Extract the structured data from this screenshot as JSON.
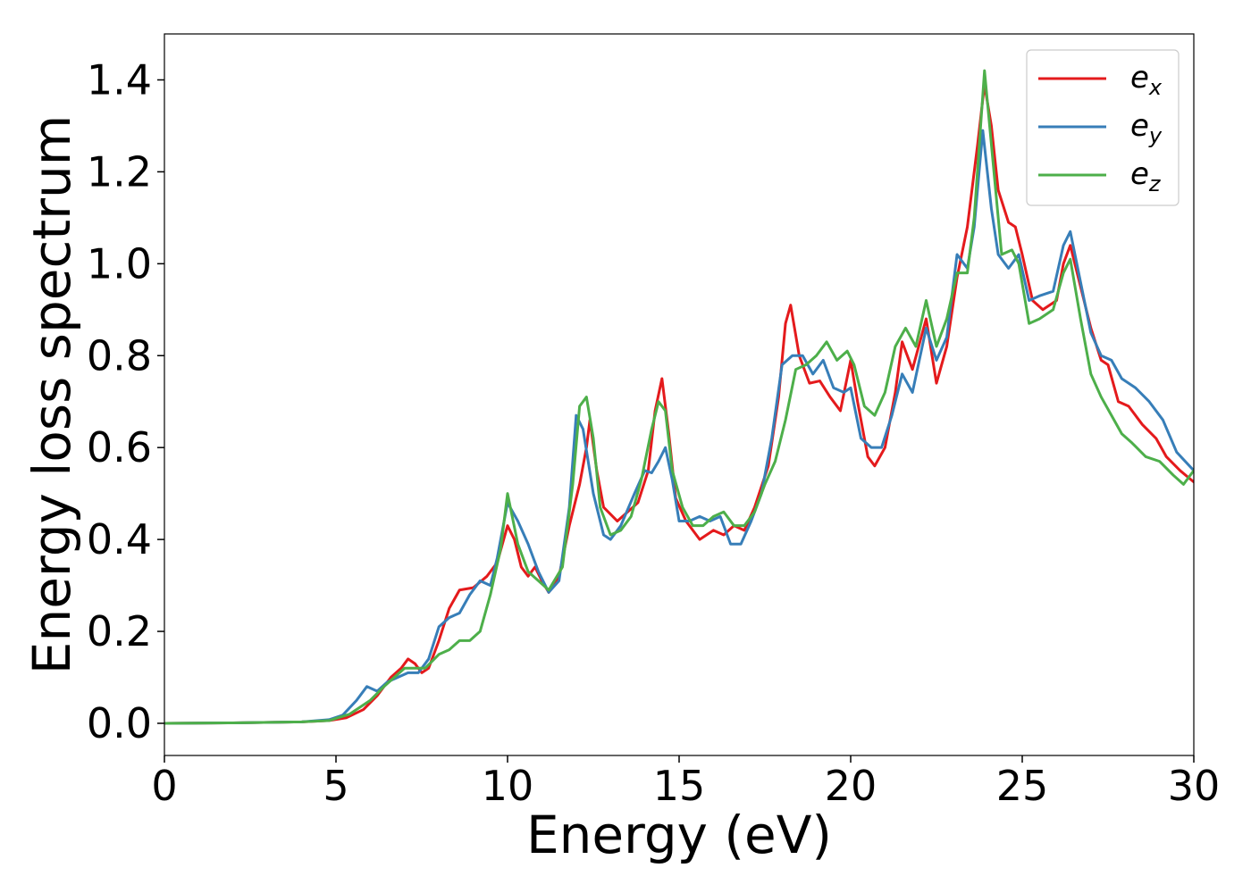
{
  "chart_data": {
    "type": "line",
    "xlabel": "Energy (eV)",
    "ylabel": "Energy loss spectrum",
    "xlim": [
      0,
      30
    ],
    "ylim": [
      -0.07,
      1.5
    ],
    "xticks": [
      0,
      5,
      10,
      15,
      20,
      25,
      30
    ],
    "yticks": [
      0.0,
      0.2,
      0.4,
      0.6,
      0.8,
      1.0,
      1.2,
      1.4
    ],
    "xtick_labels": [
      "0",
      "5",
      "10",
      "15",
      "20",
      "25",
      "30"
    ],
    "ytick_labels": [
      "0.0",
      "0.2",
      "0.4",
      "0.6",
      "0.8",
      "1.0",
      "1.2",
      "1.4"
    ],
    "grid": false,
    "legend_position": "top-right",
    "series": [
      {
        "name": "e_x",
        "label_base": "e",
        "label_sub": "x",
        "color": "#e41a1c",
        "points": [
          [
            0,
            0.0
          ],
          [
            2,
            0.001
          ],
          [
            4,
            0.003
          ],
          [
            4.8,
            0.006
          ],
          [
            5.3,
            0.012
          ],
          [
            5.8,
            0.03
          ],
          [
            6.2,
            0.06
          ],
          [
            6.6,
            0.1
          ],
          [
            6.9,
            0.12
          ],
          [
            7.1,
            0.14
          ],
          [
            7.3,
            0.13
          ],
          [
            7.5,
            0.11
          ],
          [
            7.7,
            0.12
          ],
          [
            8.0,
            0.18
          ],
          [
            8.3,
            0.25
          ],
          [
            8.6,
            0.29
          ],
          [
            9.0,
            0.295
          ],
          [
            9.4,
            0.32
          ],
          [
            9.7,
            0.35
          ],
          [
            10.0,
            0.43
          ],
          [
            10.2,
            0.4
          ],
          [
            10.4,
            0.34
          ],
          [
            10.6,
            0.32
          ],
          [
            10.8,
            0.34
          ],
          [
            11.0,
            0.31
          ],
          [
            11.2,
            0.285
          ],
          [
            11.5,
            0.32
          ],
          [
            11.8,
            0.43
          ],
          [
            12.1,
            0.52
          ],
          [
            12.3,
            0.6
          ],
          [
            12.4,
            0.66
          ],
          [
            12.6,
            0.55
          ],
          [
            12.8,
            0.47
          ],
          [
            13.2,
            0.44
          ],
          [
            13.5,
            0.46
          ],
          [
            13.8,
            0.48
          ],
          [
            14.1,
            0.55
          ],
          [
            14.3,
            0.68
          ],
          [
            14.5,
            0.75
          ],
          [
            14.7,
            0.63
          ],
          [
            14.9,
            0.49
          ],
          [
            15.2,
            0.44
          ],
          [
            15.6,
            0.4
          ],
          [
            16.0,
            0.42
          ],
          [
            16.3,
            0.41
          ],
          [
            16.6,
            0.43
          ],
          [
            16.9,
            0.42
          ],
          [
            17.2,
            0.47
          ],
          [
            17.6,
            0.56
          ],
          [
            17.9,
            0.71
          ],
          [
            18.1,
            0.87
          ],
          [
            18.25,
            0.91
          ],
          [
            18.5,
            0.8
          ],
          [
            18.8,
            0.74
          ],
          [
            19.1,
            0.745
          ],
          [
            19.4,
            0.71
          ],
          [
            19.7,
            0.68
          ],
          [
            20.0,
            0.79
          ],
          [
            20.2,
            0.7
          ],
          [
            20.5,
            0.58
          ],
          [
            20.7,
            0.56
          ],
          [
            21.0,
            0.6
          ],
          [
            21.3,
            0.72
          ],
          [
            21.5,
            0.83
          ],
          [
            21.8,
            0.77
          ],
          [
            22.2,
            0.88
          ],
          [
            22.5,
            0.74
          ],
          [
            22.8,
            0.82
          ],
          [
            23.1,
            0.97
          ],
          [
            23.4,
            1.08
          ],
          [
            23.7,
            1.26
          ],
          [
            23.9,
            1.39
          ],
          [
            24.1,
            1.3
          ],
          [
            24.3,
            1.16
          ],
          [
            24.6,
            1.09
          ],
          [
            24.8,
            1.08
          ],
          [
            25.0,
            1.02
          ],
          [
            25.3,
            0.92
          ],
          [
            25.6,
            0.9
          ],
          [
            26.0,
            0.92
          ],
          [
            26.2,
            1.0
          ],
          [
            26.4,
            1.04
          ],
          [
            26.6,
            0.98
          ],
          [
            27.0,
            0.86
          ],
          [
            27.3,
            0.79
          ],
          [
            27.5,
            0.78
          ],
          [
            27.8,
            0.7
          ],
          [
            28.1,
            0.69
          ],
          [
            28.5,
            0.65
          ],
          [
            28.9,
            0.62
          ],
          [
            29.2,
            0.58
          ],
          [
            29.6,
            0.55
          ],
          [
            30.0,
            0.525
          ]
        ]
      },
      {
        "name": "e_y",
        "label_base": "e",
        "label_sub": "y",
        "color": "#377eb8",
        "points": [
          [
            0,
            0.0
          ],
          [
            2,
            0.001
          ],
          [
            4,
            0.003
          ],
          [
            4.8,
            0.008
          ],
          [
            5.2,
            0.018
          ],
          [
            5.6,
            0.05
          ],
          [
            5.9,
            0.08
          ],
          [
            6.2,
            0.07
          ],
          [
            6.5,
            0.09
          ],
          [
            6.8,
            0.1
          ],
          [
            7.1,
            0.11
          ],
          [
            7.4,
            0.11
          ],
          [
            7.7,
            0.14
          ],
          [
            8.0,
            0.21
          ],
          [
            8.3,
            0.23
          ],
          [
            8.6,
            0.24
          ],
          [
            8.9,
            0.28
          ],
          [
            9.2,
            0.31
          ],
          [
            9.5,
            0.3
          ],
          [
            9.7,
            0.36
          ],
          [
            10.0,
            0.48
          ],
          [
            10.3,
            0.44
          ],
          [
            10.6,
            0.39
          ],
          [
            10.9,
            0.33
          ],
          [
            11.2,
            0.285
          ],
          [
            11.5,
            0.31
          ],
          [
            11.8,
            0.47
          ],
          [
            12.0,
            0.67
          ],
          [
            12.2,
            0.64
          ],
          [
            12.5,
            0.5
          ],
          [
            12.8,
            0.41
          ],
          [
            13.0,
            0.4
          ],
          [
            13.3,
            0.43
          ],
          [
            13.7,
            0.5
          ],
          [
            14.0,
            0.55
          ],
          [
            14.2,
            0.545
          ],
          [
            14.4,
            0.57
          ],
          [
            14.6,
            0.6
          ],
          [
            14.8,
            0.53
          ],
          [
            15.0,
            0.44
          ],
          [
            15.3,
            0.44
          ],
          [
            15.6,
            0.45
          ],
          [
            15.9,
            0.44
          ],
          [
            16.2,
            0.45
          ],
          [
            16.5,
            0.39
          ],
          [
            16.8,
            0.39
          ],
          [
            17.1,
            0.44
          ],
          [
            17.4,
            0.5
          ],
          [
            17.7,
            0.62
          ],
          [
            18.0,
            0.78
          ],
          [
            18.3,
            0.8
          ],
          [
            18.6,
            0.8
          ],
          [
            18.9,
            0.76
          ],
          [
            19.2,
            0.79
          ],
          [
            19.5,
            0.73
          ],
          [
            19.8,
            0.72
          ],
          [
            20.0,
            0.73
          ],
          [
            20.3,
            0.62
          ],
          [
            20.6,
            0.6
          ],
          [
            20.9,
            0.6
          ],
          [
            21.2,
            0.67
          ],
          [
            21.5,
            0.76
          ],
          [
            21.8,
            0.72
          ],
          [
            22.2,
            0.86
          ],
          [
            22.5,
            0.79
          ],
          [
            22.8,
            0.84
          ],
          [
            23.1,
            1.02
          ],
          [
            23.4,
            0.99
          ],
          [
            23.6,
            1.08
          ],
          [
            23.85,
            1.29
          ],
          [
            24.1,
            1.12
          ],
          [
            24.3,
            1.02
          ],
          [
            24.6,
            0.99
          ],
          [
            24.9,
            1.02
          ],
          [
            25.2,
            0.92
          ],
          [
            25.5,
            0.93
          ],
          [
            25.9,
            0.94
          ],
          [
            26.2,
            1.04
          ],
          [
            26.4,
            1.07
          ],
          [
            26.7,
            0.96
          ],
          [
            27.0,
            0.85
          ],
          [
            27.3,
            0.8
          ],
          [
            27.6,
            0.79
          ],
          [
            27.9,
            0.75
          ],
          [
            28.3,
            0.73
          ],
          [
            28.7,
            0.7
          ],
          [
            29.1,
            0.66
          ],
          [
            29.5,
            0.59
          ],
          [
            30.0,
            0.55
          ]
        ]
      },
      {
        "name": "e_z",
        "label_base": "e",
        "label_sub": "z",
        "color": "#4daf4a",
        "points": [
          [
            0,
            0.0
          ],
          [
            2,
            0.001
          ],
          [
            4,
            0.003
          ],
          [
            4.8,
            0.006
          ],
          [
            5.4,
            0.02
          ],
          [
            6.0,
            0.05
          ],
          [
            6.4,
            0.08
          ],
          [
            6.7,
            0.1
          ],
          [
            7.0,
            0.12
          ],
          [
            7.3,
            0.12
          ],
          [
            7.6,
            0.12
          ],
          [
            8.0,
            0.15
          ],
          [
            8.3,
            0.16
          ],
          [
            8.6,
            0.18
          ],
          [
            8.9,
            0.18
          ],
          [
            9.2,
            0.2
          ],
          [
            9.5,
            0.28
          ],
          [
            9.8,
            0.38
          ],
          [
            10.0,
            0.5
          ],
          [
            10.3,
            0.39
          ],
          [
            10.6,
            0.33
          ],
          [
            10.9,
            0.31
          ],
          [
            11.2,
            0.29
          ],
          [
            11.6,
            0.34
          ],
          [
            11.9,
            0.52
          ],
          [
            12.1,
            0.69
          ],
          [
            12.3,
            0.71
          ],
          [
            12.5,
            0.62
          ],
          [
            12.7,
            0.47
          ],
          [
            13.0,
            0.41
          ],
          [
            13.3,
            0.42
          ],
          [
            13.6,
            0.45
          ],
          [
            13.9,
            0.53
          ],
          [
            14.2,
            0.64
          ],
          [
            14.4,
            0.7
          ],
          [
            14.6,
            0.68
          ],
          [
            14.8,
            0.55
          ],
          [
            15.1,
            0.47
          ],
          [
            15.4,
            0.43
          ],
          [
            15.7,
            0.43
          ],
          [
            16.0,
            0.45
          ],
          [
            16.3,
            0.46
          ],
          [
            16.6,
            0.43
          ],
          [
            16.9,
            0.43
          ],
          [
            17.2,
            0.46
          ],
          [
            17.5,
            0.52
          ],
          [
            17.8,
            0.57
          ],
          [
            18.1,
            0.66
          ],
          [
            18.4,
            0.77
          ],
          [
            18.7,
            0.78
          ],
          [
            19.0,
            0.8
          ],
          [
            19.3,
            0.83
          ],
          [
            19.6,
            0.79
          ],
          [
            19.9,
            0.81
          ],
          [
            20.1,
            0.78
          ],
          [
            20.4,
            0.69
          ],
          [
            20.7,
            0.67
          ],
          [
            21.0,
            0.72
          ],
          [
            21.3,
            0.82
          ],
          [
            21.6,
            0.86
          ],
          [
            21.9,
            0.82
          ],
          [
            22.2,
            0.92
          ],
          [
            22.5,
            0.82
          ],
          [
            22.8,
            0.88
          ],
          [
            23.1,
            0.98
          ],
          [
            23.4,
            0.98
          ],
          [
            23.6,
            1.1
          ],
          [
            23.9,
            1.42
          ],
          [
            24.2,
            1.18
          ],
          [
            24.4,
            1.02
          ],
          [
            24.7,
            1.03
          ],
          [
            24.9,
            1.0
          ],
          [
            25.2,
            0.87
          ],
          [
            25.5,
            0.88
          ],
          [
            25.9,
            0.9
          ],
          [
            26.2,
            0.98
          ],
          [
            26.4,
            1.01
          ],
          [
            26.7,
            0.88
          ],
          [
            27.0,
            0.76
          ],
          [
            27.3,
            0.71
          ],
          [
            27.6,
            0.67
          ],
          [
            27.9,
            0.63
          ],
          [
            28.2,
            0.61
          ],
          [
            28.6,
            0.58
          ],
          [
            29.0,
            0.57
          ],
          [
            29.4,
            0.54
          ],
          [
            29.7,
            0.52
          ],
          [
            30.0,
            0.55
          ]
        ]
      }
    ]
  }
}
